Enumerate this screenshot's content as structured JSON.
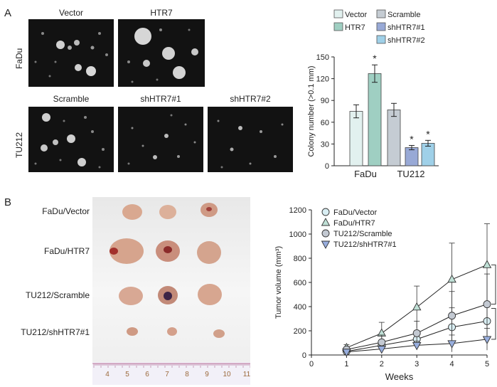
{
  "panel_a": {
    "letter": "A",
    "fadu_row_label": "FaDu",
    "tu212_row_label": "TU212",
    "fadu_images": [
      "Vector",
      "HTR7"
    ],
    "tu212_images": [
      "Scramble",
      "shHTR7#1",
      "shHTR7#2"
    ]
  },
  "panel_b": {
    "letter": "B",
    "tumor_labels": [
      "FaDu/Vector",
      "FaDu/HTR7",
      "TU212/Scramble",
      "TU212/shHTR7#1"
    ],
    "ruler_ticks": [
      "4",
      "5",
      "6",
      "7",
      "8",
      "9",
      "10",
      "11"
    ]
  },
  "colors": {
    "vector": "#e2f1ef",
    "htr7": "#9fcfc2",
    "scramble": "#c5ccd3",
    "sh1": "#98a9d6",
    "sh2": "#9fd0e8"
  },
  "chart_data": [
    {
      "type": "bar",
      "ylabel": "Colony number (>0.1 mm)",
      "ylim": [
        0,
        150
      ],
      "yticks": [
        "0",
        "30",
        "60",
        "90",
        "120",
        "150"
      ],
      "groups": [
        "FaDu",
        "TU212"
      ],
      "legend": [
        "Vector",
        "HTR7",
        "Scramble",
        "shHTR7#1",
        "shHTR7#2"
      ],
      "series": [
        {
          "name": "Vector",
          "group": "FaDu",
          "value": 75,
          "error": 9,
          "sig": ""
        },
        {
          "name": "HTR7",
          "group": "FaDu",
          "value": 127,
          "error": 12,
          "sig": "*"
        },
        {
          "name": "Scramble",
          "group": "TU212",
          "value": 77,
          "error": 9,
          "sig": ""
        },
        {
          "name": "shHTR7#1",
          "group": "TU212",
          "value": 25,
          "error": 3,
          "sig": "*"
        },
        {
          "name": "shHTR7#2",
          "group": "TU212",
          "value": 31,
          "error": 4,
          "sig": "*"
        }
      ]
    },
    {
      "type": "line",
      "xlabel": "Weeks",
      "ylabel": "Tumor volume (mm³)",
      "xlim": [
        0,
        5
      ],
      "ylim": [
        0,
        1200
      ],
      "xticks": [
        "0",
        "1",
        "2",
        "3",
        "4",
        "5"
      ],
      "yticks": [
        "0",
        "200",
        "400",
        "600",
        "800",
        "1000",
        "1200"
      ],
      "x": [
        1,
        2,
        3,
        4,
        5
      ],
      "series": [
        {
          "name": "FaDu/Vector",
          "marker": "circle",
          "values": [
            30,
            80,
            130,
            230,
            280
          ],
          "errors": [
            15,
            40,
            70,
            160,
            150
          ]
        },
        {
          "name": "FaDu/HTR7",
          "marker": "triangle-up",
          "values": [
            60,
            180,
            395,
            625,
            745
          ],
          "errors": [
            25,
            90,
            175,
            300,
            340
          ]
        },
        {
          "name": "TU212/Scramble",
          "marker": "circle-dark",
          "values": [
            45,
            105,
            180,
            325,
            420
          ],
          "errors": [
            20,
            60,
            100,
            200,
            250
          ]
        },
        {
          "name": "TU212/shHTR7#1",
          "marker": "triangle-down",
          "values": [
            25,
            50,
            80,
            95,
            130
          ],
          "errors": [
            10,
            25,
            35,
            70,
            90
          ]
        }
      ],
      "annotations": [
        "*",
        "*"
      ]
    }
  ]
}
